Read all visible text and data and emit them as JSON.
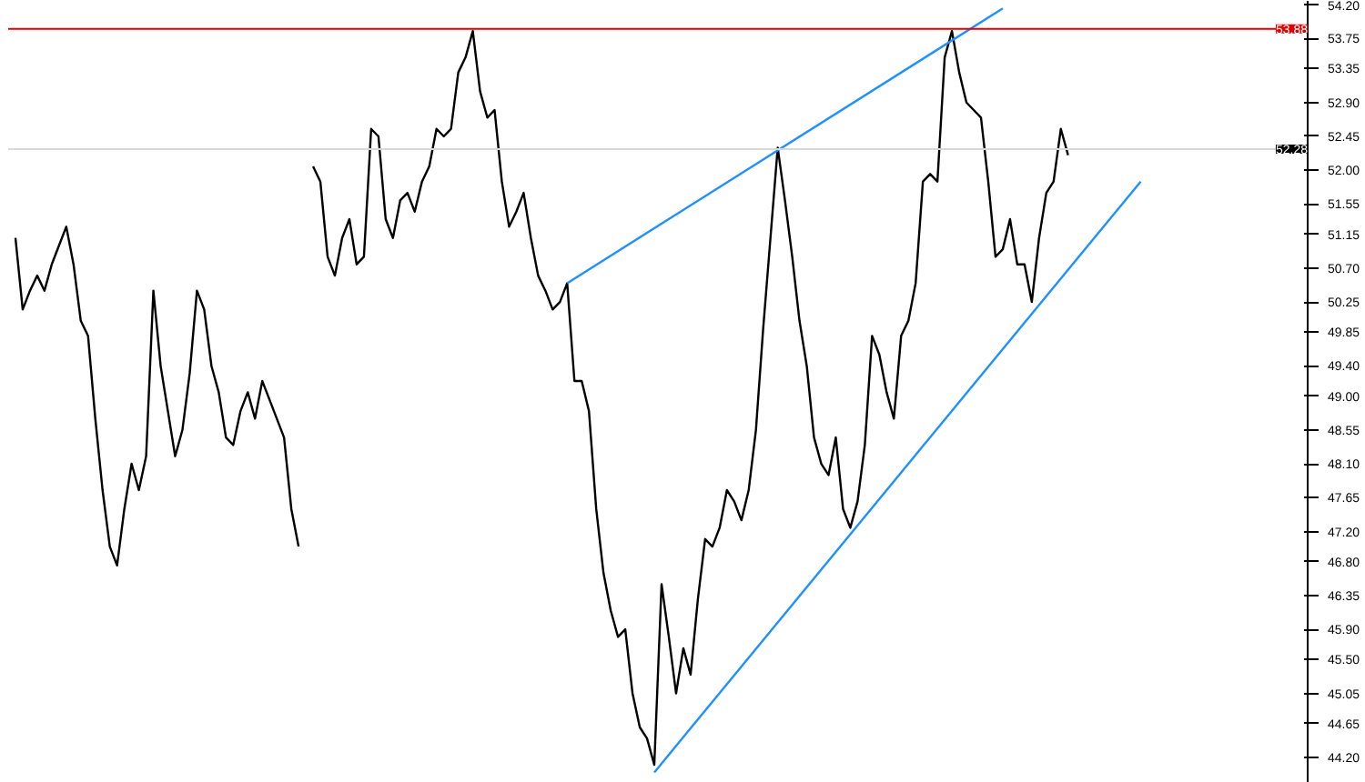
{
  "chart_data": {
    "type": "line",
    "categories": [
      null,
      null,
      null,
      null,
      null,
      null,
      null,
      null,
      null,
      null,
      null,
      null,
      null,
      null,
      null,
      null,
      null,
      null,
      null,
      null,
      null,
      null,
      null,
      null,
      null,
      null,
      null,
      null,
      null,
      null,
      null,
      null,
      null,
      null,
      null,
      null,
      null,
      null,
      null,
      null,
      null,
      null,
      null,
      null,
      null,
      null,
      null,
      null,
      null,
      null,
      null,
      null,
      null,
      null,
      null,
      null,
      null,
      null,
      null,
      null,
      null,
      null,
      null,
      null,
      null,
      null,
      null,
      null,
      null,
      null,
      null,
      null,
      null,
      null,
      null,
      null,
      null,
      null,
      null,
      null,
      null,
      null,
      null,
      null,
      null,
      null,
      null,
      null,
      null,
      null,
      null,
      null,
      null,
      null,
      null,
      null,
      null,
      null,
      null,
      null,
      null,
      null,
      null,
      null,
      null,
      null,
      null,
      null,
      null,
      null,
      null,
      null,
      null,
      null,
      null,
      null,
      null,
      null,
      null,
      null,
      null,
      null,
      null,
      null,
      null,
      null,
      null,
      null,
      null,
      null,
      null,
      null,
      null,
      null,
      null,
      null,
      null,
      null,
      null,
      null,
      null,
      null,
      null,
      null,
      null,
      null,
      null,
      null,
      null,
      null,
      null,
      null,
      null,
      null,
      null,
      null
    ],
    "series": [
      {
        "color": "#000000",
        "values": [
          51.1,
          50.15,
          50.4,
          50.6,
          50.4,
          50.75,
          51.0,
          51.25,
          50.75,
          50.0,
          49.8,
          48.7,
          47.75,
          47.0,
          46.75,
          47.5,
          48.1,
          47.75,
          48.2,
          50.4,
          49.4,
          48.8,
          48.2,
          48.55,
          49.3,
          50.4,
          50.15,
          49.4,
          49.05,
          48.45,
          48.35,
          48.8,
          49.05,
          48.7,
          49.2,
          48.95,
          48.7,
          48.45,
          47.5,
          47.0,
          null,
          null,
          null,
          null,
          null,
          null,
          null,
          null,
          null,
          null,
          null,
          null,
          null,
          null,
          null,
          null,
          null,
          null,
          null,
          null,
          null,
          null,
          null,
          null,
          null,
          null,
          null,
          null,
          null,
          null,
          null,
          null,
          null,
          null,
          null,
          null,
          null,
          null,
          null,
          null,
          null,
          null,
          null,
          null,
          null,
          null,
          null,
          null,
          null,
          null,
          null,
          null,
          null,
          null,
          null,
          null,
          null,
          null,
          null,
          null,
          null,
          null,
          null,
          null,
          null,
          null,
          null,
          null,
          null,
          null,
          null,
          null,
          null,
          null,
          null,
          null,
          null,
          null,
          null,
          null,
          null,
          null,
          null,
          null,
          null,
          null,
          null,
          null,
          null,
          null,
          null,
          null,
          null,
          null,
          null,
          null,
          null,
          null,
          null,
          null,
          null,
          null,
          null,
          null,
          null,
          null,
          null,
          null,
          null,
          null,
          null,
          null,
          null,
          null,
          null,
          null
        ]
      },
      {
        "color": "#000000",
        "values": [
          null,
          null,
          null,
          null,
          null,
          null,
          null,
          null,
          null,
          null,
          null,
          null,
          null,
          null,
          null,
          null,
          null,
          null,
          null,
          null,
          null,
          null,
          null,
          null,
          null,
          null,
          null,
          null,
          null,
          null,
          null,
          null,
          null,
          null,
          null,
          null,
          null,
          null,
          null,
          null,
          null,
          52.05,
          51.85,
          50.85,
          50.6,
          51.1,
          51.35,
          50.75,
          50.85,
          52.55,
          52.45,
          51.35,
          51.1,
          51.6,
          51.7,
          51.45,
          51.85,
          52.05,
          52.55,
          52.45,
          52.55,
          53.3,
          53.5,
          53.85,
          53.05,
          52.7,
          52.8,
          51.85,
          51.25,
          51.45,
          51.7,
          51.1,
          50.6,
          50.4,
          50.15,
          50.25,
          50.5,
          49.2,
          49.2,
          48.8,
          47.5,
          46.65,
          46.15,
          45.8,
          45.9,
          45.05,
          44.6,
          44.45,
          44.1,
          46.5,
          45.8,
          45.05,
          45.65,
          45.3,
          46.3,
          47.1,
          47.0,
          47.25,
          47.75,
          47.6,
          47.35,
          47.75,
          48.55,
          49.9,
          51.1,
          52.3,
          51.6,
          50.85,
          50.0,
          49.4,
          48.45,
          48.1,
          47.95,
          48.45,
          47.5,
          47.25,
          47.6,
          48.35,
          49.8,
          49.55,
          49.05,
          48.7,
          49.8,
          50.0,
          50.5,
          51.85,
          51.95,
          51.85,
          53.5,
          53.85,
          53.3,
          52.9,
          52.8,
          52.7,
          51.85,
          50.85,
          50.95,
          51.35,
          50.75,
          50.75,
          50.25,
          51.1,
          51.7,
          51.85,
          52.55,
          52.2,
          null,
          null,
          null,
          null,
          null,
          null,
          null,
          null,
          null,
          null
        ]
      },
      {
        "color": "#1e90ff",
        "values": [
          null,
          null,
          null,
          null,
          null,
          null,
          null,
          null,
          null,
          null,
          null,
          null,
          null,
          null,
          null,
          null,
          null,
          null,
          null,
          null,
          null,
          null,
          null,
          null,
          null,
          null,
          null,
          null,
          null,
          null,
          null,
          null,
          null,
          null,
          null,
          null,
          null,
          null,
          null,
          null,
          null,
          null,
          null,
          null,
          null,
          null,
          null,
          null,
          null,
          null,
          null,
          null,
          null,
          null,
          null,
          null,
          null,
          null,
          null,
          null,
          null,
          null,
          null,
          null,
          null,
          null,
          null,
          null,
          null,
          null,
          null,
          null,
          null,
          null,
          null,
          null,
          50.5,
          null,
          null,
          null,
          null,
          null,
          null,
          null,
          null,
          null,
          null,
          null,
          null,
          null,
          null,
          null,
          null,
          null,
          null,
          null,
          null,
          null,
          null,
          null,
          null,
          null,
          null,
          null,
          null,
          null,
          null,
          null,
          null,
          null,
          null,
          null,
          null,
          null,
          null,
          null,
          null,
          null,
          null,
          null,
          null,
          null,
          null,
          null,
          null,
          null,
          null,
          null,
          null,
          null,
          null,
          null,
          null,
          null,
          null,
          null,
          54.15,
          null,
          null,
          null,
          null,
          null,
          null,
          null,
          null,
          null,
          null,
          null,
          null,
          null,
          null,
          null,
          null,
          null,
          null,
          null
        ]
      },
      {
        "color": "#1e90ff",
        "values": [
          null,
          null,
          null,
          null,
          null,
          null,
          null,
          null,
          null,
          null,
          null,
          null,
          null,
          null,
          null,
          null,
          null,
          null,
          null,
          null,
          null,
          null,
          null,
          null,
          null,
          null,
          null,
          null,
          null,
          null,
          null,
          null,
          null,
          null,
          null,
          null,
          null,
          null,
          null,
          null,
          null,
          null,
          null,
          null,
          null,
          null,
          null,
          null,
          null,
          null,
          null,
          null,
          null,
          null,
          null,
          null,
          null,
          null,
          null,
          null,
          null,
          null,
          null,
          null,
          null,
          null,
          null,
          null,
          null,
          null,
          null,
          null,
          null,
          null,
          null,
          null,
          null,
          null,
          null,
          null,
          null,
          null,
          null,
          null,
          null,
          null,
          null,
          null,
          44.0,
          null,
          null,
          null,
          null,
          null,
          null,
          null,
          null,
          null,
          null,
          null,
          null,
          null,
          null,
          null,
          null,
          null,
          null,
          null,
          null,
          null,
          null,
          null,
          null,
          null,
          null,
          null,
          null,
          null,
          null,
          null,
          null,
          null,
          null,
          null,
          null,
          null,
          null,
          null,
          null,
          null,
          null,
          null,
          null,
          null,
          null,
          null,
          null,
          null,
          null,
          null,
          null,
          null,
          null,
          null,
          null,
          null,
          null,
          null,
          null,
          null,
          null,
          null,
          null,
          null,
          null,
          51.85
        ]
      }
    ],
    "ylim": [
      43.86,
      54.25
    ],
    "yticks": [
      {
        "value": 54.2,
        "label": "54.20"
      },
      53.75,
      53.35,
      {
        "value": 52.9,
        "label": "52.90"
      },
      52.45,
      {
        "value": 52.0,
        "label": "52.00"
      },
      51.55,
      51.15,
      {
        "value": 50.7,
        "label": "50.70"
      },
      50.25,
      49.85,
      {
        "value": 49.4,
        "label": "49.40"
      },
      {
        "value": 49.0,
        "label": "49.00"
      },
      48.55,
      {
        "value": 48.1,
        "label": "48.10"
      },
      47.65,
      {
        "value": 47.2,
        "label": "47.20"
      },
      {
        "value": 46.8,
        "label": "46.80"
      },
      46.35,
      {
        "value": 45.9,
        "label": "45.90"
      },
      {
        "value": 45.5,
        "label": "45.50"
      },
      45.05,
      44.65,
      {
        "value": 44.2,
        "label": "44.20"
      }
    ],
    "ref_lines": [
      {
        "axis": "y",
        "value": 53.88,
        "label": "53.88",
        "color": "#e00000"
      },
      {
        "axis": "y",
        "value": 52.28,
        "label": "52.28",
        "color": "#d8d8d8"
      }
    ],
    "grid": false,
    "marker": "none",
    "line_style": "solid"
  }
}
